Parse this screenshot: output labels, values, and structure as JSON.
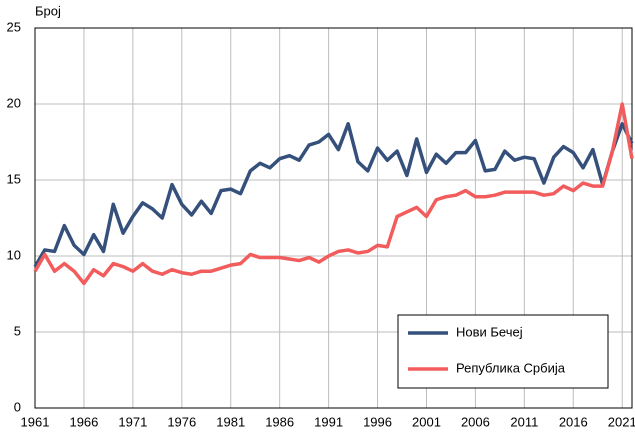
{
  "chart_data": {
    "type": "line",
    "y_label": "Број",
    "x": [
      1961,
      1962,
      1963,
      1964,
      1965,
      1966,
      1967,
      1968,
      1969,
      1970,
      1971,
      1972,
      1973,
      1974,
      1975,
      1976,
      1977,
      1978,
      1979,
      1980,
      1981,
      1982,
      1983,
      1984,
      1985,
      1986,
      1987,
      1988,
      1989,
      1990,
      1991,
      1992,
      1993,
      1994,
      1995,
      1996,
      1997,
      1998,
      1999,
      2000,
      2001,
      2002,
      2003,
      2004,
      2005,
      2006,
      2007,
      2008,
      2009,
      2010,
      2011,
      2012,
      2013,
      2014,
      2015,
      2016,
      2017,
      2018,
      2019,
      2020,
      2021,
      2022
    ],
    "series": [
      {
        "name": "Нови Бечеј",
        "color": "#34507b",
        "values": [
          9.3,
          10.4,
          10.3,
          12.0,
          10.7,
          10.1,
          11.4,
          10.3,
          13.4,
          11.5,
          12.6,
          13.5,
          13.1,
          12.5,
          14.7,
          13.4,
          12.7,
          13.6,
          12.8,
          14.3,
          14.4,
          14.1,
          15.6,
          16.1,
          15.8,
          16.4,
          16.6,
          16.3,
          17.3,
          17.5,
          18.0,
          17.0,
          18.7,
          16.2,
          15.6,
          17.1,
          16.3,
          16.9,
          15.3,
          17.7,
          15.5,
          16.7,
          16.1,
          16.8,
          16.8,
          17.6,
          15.6,
          15.7,
          16.9,
          16.3,
          16.5,
          16.4,
          14.8,
          16.5,
          17.2,
          16.8,
          15.8,
          17.0,
          14.7,
          16.9,
          18.7,
          17.4
        ]
      },
      {
        "name": "Република Србија",
        "color": "#f25c5c",
        "values": [
          9.0,
          10.1,
          9.0,
          9.5,
          9.0,
          8.2,
          9.1,
          8.7,
          9.5,
          9.3,
          9.0,
          9.5,
          9.0,
          8.8,
          9.1,
          8.9,
          8.8,
          9.0,
          9.0,
          9.2,
          9.4,
          9.5,
          10.1,
          9.9,
          9.9,
          9.9,
          9.8,
          9.7,
          9.9,
          9.6,
          10.0,
          10.3,
          10.4,
          10.2,
          10.3,
          10.7,
          10.6,
          12.6,
          12.9,
          13.2,
          12.6,
          13.7,
          13.9,
          14.0,
          14.3,
          13.9,
          13.9,
          14.0,
          14.2,
          14.2,
          14.2,
          14.2,
          14.0,
          14.1,
          14.6,
          14.3,
          14.8,
          14.6,
          14.6,
          16.9,
          20.0,
          16.4
        ]
      }
    ],
    "xlim": [
      1961,
      2022
    ],
    "xticks": [
      1961,
      1966,
      1971,
      1976,
      1981,
      1986,
      1991,
      1996,
      2001,
      2006,
      2011,
      2016,
      2021
    ],
    "ylim": [
      0,
      25
    ],
    "yticks": [
      0,
      5,
      10,
      15,
      20,
      25
    ],
    "grid": true,
    "legend": "lower right"
  }
}
